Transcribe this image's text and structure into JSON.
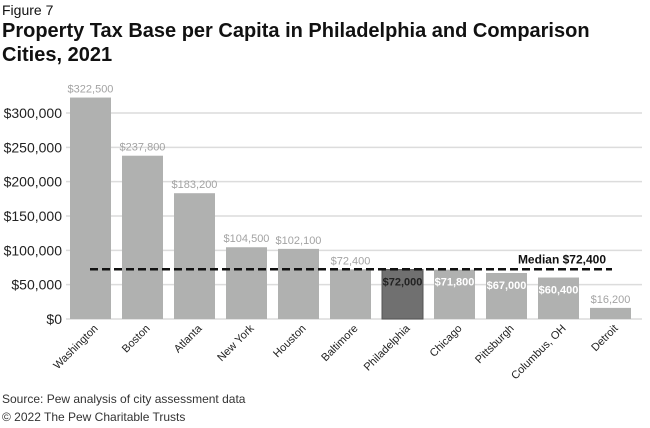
{
  "chart_data": {
    "type": "bar",
    "figure_label": "Figure 7",
    "title": "Property Tax Base per Capita in Philadelphia and Comparison Cities, 2021",
    "categories": [
      "Washington",
      "Boston",
      "Atlanta",
      "New York",
      "Houston",
      "Baltimore",
      "Philadelphia",
      "Chicago",
      "Pittsburgh",
      "Columbus, OH",
      "Detroit"
    ],
    "values": [
      322500,
      237800,
      183200,
      104500,
      102100,
      72400,
      72000,
      71800,
      67000,
      60400,
      16200
    ],
    "data_labels": [
      "$322,500",
      "$237,800",
      "$183,200",
      "$104,500",
      "$102,100",
      "$72,400",
      "$72,000",
      "$71,800",
      "$67,000",
      "$60,400",
      "$16,200"
    ],
    "highlight": "Philadelphia",
    "ylim": [
      0,
      300000
    ],
    "yticks": [
      0,
      50000,
      100000,
      150000,
      200000,
      250000,
      300000
    ],
    "ytick_labels": [
      "$0",
      "$50,000",
      "$100,000",
      "$150,000",
      "$200,000",
      "$250,000",
      "$300,000"
    ],
    "grid": true,
    "reference_line": {
      "value": 72400,
      "label": "Median $72,400"
    },
    "xlabel": "",
    "ylabel": "",
    "colors": {
      "bar": "#b0b1b0",
      "highlight": "#707070",
      "grid": "#dcdcdc",
      "label": "#a3a3a3"
    }
  },
  "source": "Source: Pew analysis of city assessment data",
  "copyright": "© 2022 The Pew Charitable Trusts"
}
